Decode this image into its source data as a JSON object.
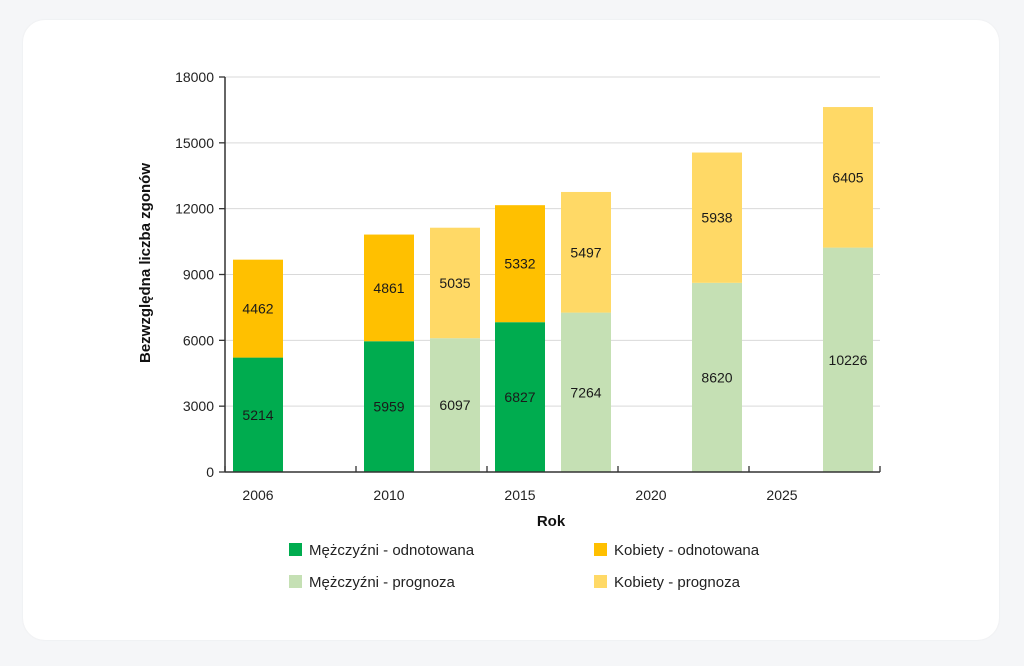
{
  "chart_data": {
    "type": "bar",
    "stacked": true,
    "title": "",
    "xlabel": "Rok",
    "ylabel": "Bezwzględna liczba zgonów",
    "ylim": [
      0,
      18000
    ],
    "yticks": [
      0,
      3000,
      6000,
      9000,
      12000,
      15000,
      18000
    ],
    "ytick_labels": [
      "0",
      "3000",
      "6000",
      "9000",
      "12000",
      "15000",
      "18000"
    ],
    "xtick_labels": [
      "2006",
      "2010",
      "2015",
      "2020",
      "2025"
    ],
    "grid": true,
    "legend_position": "bottom",
    "colors": {
      "men_recorded": "#00ac4f",
      "women_recorded": "#ffc000",
      "men_forecast": "#c5e0b4",
      "women_forecast": "#ffd966"
    },
    "legend": [
      {
        "key": "men_recorded",
        "label": "Mężczyźni - odnotowana"
      },
      {
        "key": "women_recorded",
        "label": "Kobiety - odnotowana"
      },
      {
        "key": "men_forecast",
        "label": "Mężczyźni - prognoza"
      },
      {
        "key": "women_forecast",
        "label": "Kobiety - prognoza"
      }
    ],
    "bars": [
      {
        "year": "2006",
        "kind": "recorded",
        "men": 5214,
        "women": 4462,
        "men_label": "5214",
        "women_label": "4462"
      },
      {
        "year": "2010",
        "kind": "recorded",
        "men": 5959,
        "women": 4861,
        "men_label": "5959",
        "women_label": "4861"
      },
      {
        "year": "2012",
        "kind": "forecast",
        "men": 6097,
        "women": 5035,
        "men_label": "6097",
        "women_label": "5035"
      },
      {
        "year": "2015",
        "kind": "recorded",
        "men": 6827,
        "women": 5332,
        "men_label": "6827",
        "women_label": "5332"
      },
      {
        "year": "2017",
        "kind": "forecast",
        "men": 7264,
        "women": 5497,
        "men_label": "7264",
        "women_label": "5497"
      },
      {
        "year": "2022",
        "kind": "forecast",
        "men": 8620,
        "women": 5938,
        "men_label": "8620",
        "women_label": "5938"
      },
      {
        "year": "2027",
        "kind": "forecast",
        "men": 10226,
        "women": 6405,
        "men_label": "10226",
        "women_label": "6405"
      }
    ]
  }
}
